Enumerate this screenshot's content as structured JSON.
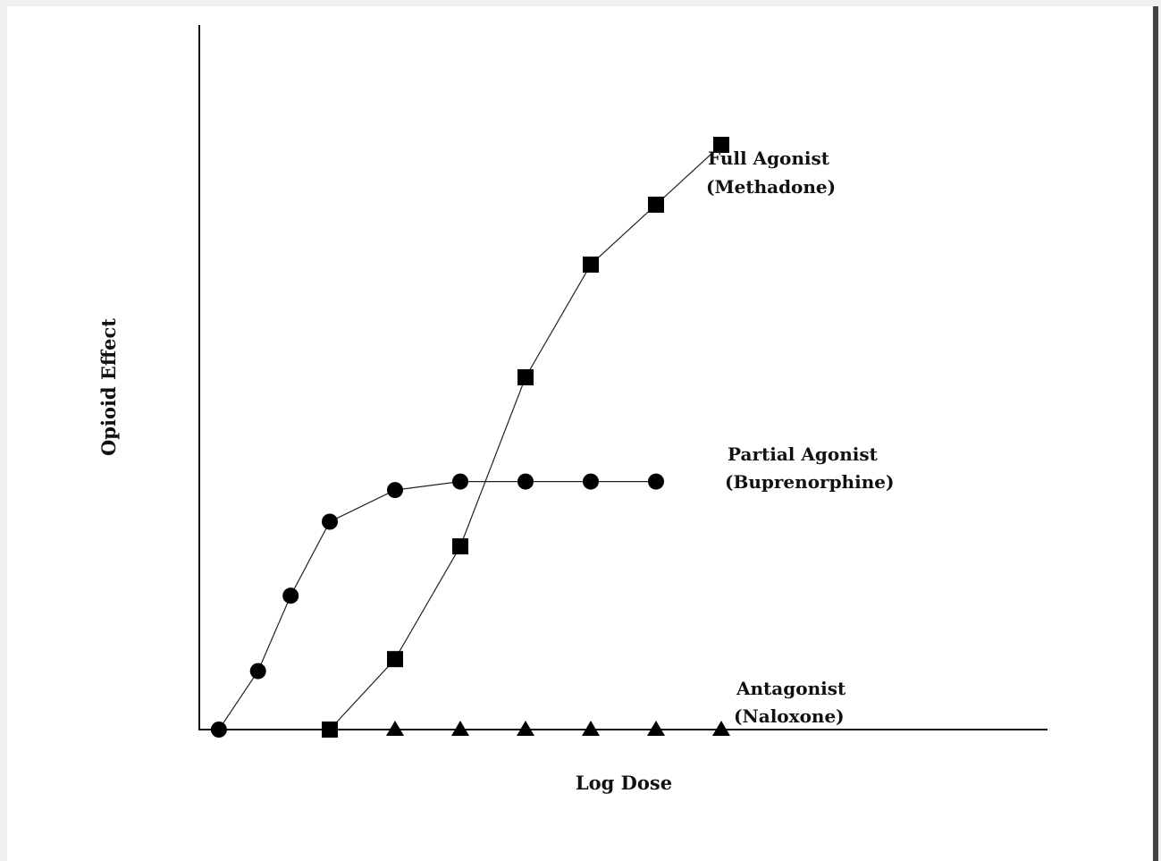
{
  "chart_data": {
    "type": "line",
    "title": "",
    "xlabel": "Log Dose",
    "ylabel": "Opioid Effect",
    "grid": false,
    "xlim": [
      0,
      13
    ],
    "ylim": [
      0,
      10
    ],
    "series": [
      {
        "name_lines": [
          "Full Agonist",
          "(Methadone)"
        ],
        "marker": "square",
        "x": [
          2,
          3,
          4,
          5,
          6,
          7,
          8
        ],
        "y": [
          0,
          1.0,
          2.6,
          5.0,
          6.6,
          7.45,
          8.3
        ]
      },
      {
        "name_lines": [
          "Partial Agonist",
          "(Buprenorphine)"
        ],
        "marker": "circle",
        "x": [
          0.3,
          0.9,
          1.4,
          2.0,
          3.0,
          4.0,
          5.0,
          6.0,
          7.0
        ],
        "y": [
          0,
          0.83,
          1.9,
          2.95,
          3.4,
          3.52,
          3.52,
          3.52,
          3.52
        ]
      },
      {
        "name_lines": [
          "Antagonist",
          "(Naloxone)"
        ],
        "marker": "triangle",
        "x": [
          3,
          4,
          5,
          6,
          7,
          8
        ],
        "y": [
          0,
          0,
          0,
          0,
          0,
          0
        ]
      }
    ]
  }
}
